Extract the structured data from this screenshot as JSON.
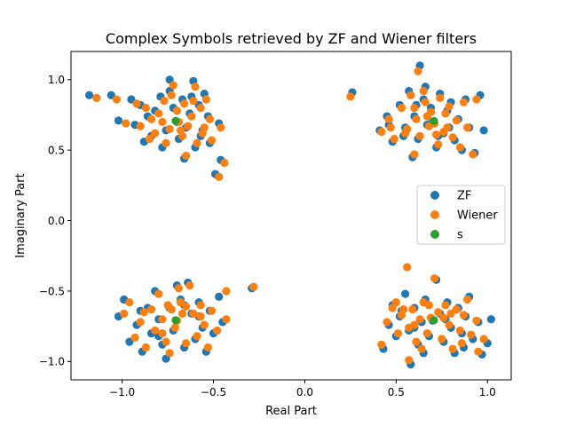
{
  "chart_data": {
    "type": "scatter",
    "title": "Complex Symbols retrieved by ZF and Wiener filters",
    "xlabel": "Real Part",
    "ylabel": "Imaginary Part",
    "xlim": [
      -1.28,
      1.13
    ],
    "ylim": [
      -1.13,
      1.2
    ],
    "xticks": [
      -1.0,
      -0.5,
      0.0,
      0.5,
      1.0
    ],
    "xtick_labels": [
      "−1.0",
      "−0.5",
      "0.0",
      "0.5",
      "1.0"
    ],
    "yticks": [
      -1.0,
      -0.5,
      0.0,
      0.5,
      1.0
    ],
    "ytick_labels": [
      "−1.0",
      "−0.5",
      "0.0",
      "0.5",
      "1.0"
    ],
    "grid": false,
    "legend_position": "center-right",
    "series": [
      {
        "name": "ZF",
        "color": "#1f77b4",
        "points": [
          [
            -1.18,
            0.89
          ],
          [
            -1.06,
            0.89
          ],
          [
            -1.02,
            0.71
          ],
          [
            -0.95,
            0.86
          ],
          [
            -0.93,
            0.68
          ],
          [
            -0.9,
            0.82
          ],
          [
            -0.86,
            0.74
          ],
          [
            -0.84,
            0.6
          ],
          [
            -0.82,
            0.78
          ],
          [
            -0.79,
            0.88
          ],
          [
            -0.76,
            0.64
          ],
          [
            -0.74,
            1.0
          ],
          [
            -0.72,
            0.8
          ],
          [
            -0.7,
            0.7
          ],
          [
            -0.69,
            0.58
          ],
          [
            -0.67,
            0.86
          ],
          [
            -0.65,
            0.66
          ],
          [
            -0.63,
            0.76
          ],
          [
            -0.61,
            0.99
          ],
          [
            -0.6,
            0.52
          ],
          [
            -0.58,
            0.82
          ],
          [
            -0.56,
            0.64
          ],
          [
            -0.55,
            0.9
          ],
          [
            -0.53,
            0.74
          ],
          [
            -0.52,
            0.55
          ],
          [
            -0.49,
            0.33
          ],
          [
            -0.47,
            0.69
          ],
          [
            -0.46,
            0.43
          ],
          [
            -0.78,
            0.52
          ],
          [
            -0.66,
            0.44
          ],
          [
            -0.88,
            0.56
          ],
          [
            -0.62,
            0.88
          ],
          [
            -0.74,
            0.92
          ],
          [
            -0.57,
            0.6
          ],
          [
            0.26,
            0.91
          ],
          [
            0.41,
            0.64
          ],
          [
            0.45,
            0.74
          ],
          [
            0.48,
            0.56
          ],
          [
            0.52,
            0.82
          ],
          [
            0.55,
            0.66
          ],
          [
            0.57,
            0.92
          ],
          [
            0.59,
            0.45
          ],
          [
            0.6,
            0.74
          ],
          [
            0.62,
            0.58
          ],
          [
            0.63,
            1.1
          ],
          [
            0.65,
            0.86
          ],
          [
            0.67,
            0.68
          ],
          [
            0.69,
            0.8
          ],
          [
            0.7,
            0.7
          ],
          [
            0.72,
            0.52
          ],
          [
            0.74,
            0.9
          ],
          [
            0.76,
            0.62
          ],
          [
            0.78,
            0.78
          ],
          [
            0.8,
            0.84
          ],
          [
            0.82,
            0.57
          ],
          [
            0.84,
            0.72
          ],
          [
            0.86,
            0.5
          ],
          [
            0.88,
            0.86
          ],
          [
            0.9,
            0.66
          ],
          [
            0.93,
            0.48
          ],
          [
            0.96,
            0.89
          ],
          [
            0.98,
            0.64
          ],
          [
            0.54,
            0.6
          ],
          [
            0.66,
            0.95
          ],
          [
            0.79,
            0.66
          ],
          [
            0.46,
            0.68
          ],
          [
            0.73,
            0.6
          ],
          [
            0.61,
            0.82
          ],
          [
            -1.02,
            -0.68
          ],
          [
            -0.99,
            -0.56
          ],
          [
            -0.96,
            -0.86
          ],
          [
            -0.92,
            -0.74
          ],
          [
            -0.89,
            -0.93
          ],
          [
            -0.86,
            -0.62
          ],
          [
            -0.84,
            -0.8
          ],
          [
            -0.82,
            -0.5
          ],
          [
            -0.8,
            -0.7
          ],
          [
            -0.78,
            -0.88
          ],
          [
            -0.76,
            -0.98
          ],
          [
            -0.74,
            -0.62
          ],
          [
            -0.72,
            -0.78
          ],
          [
            -0.7,
            -0.71
          ],
          [
            -0.68,
            -0.56
          ],
          [
            -0.66,
            -0.9
          ],
          [
            -0.64,
            -0.44
          ],
          [
            -0.62,
            -0.66
          ],
          [
            -0.6,
            -0.84
          ],
          [
            -0.58,
            -0.58
          ],
          [
            -0.56,
            -0.76
          ],
          [
            -0.54,
            -0.93
          ],
          [
            -0.52,
            -0.64
          ],
          [
            -0.5,
            -0.8
          ],
          [
            -0.47,
            -0.54
          ],
          [
            -0.45,
            -0.72
          ],
          [
            -0.29,
            -0.48
          ],
          [
            -0.9,
            -0.64
          ],
          [
            -0.7,
            -0.46
          ],
          [
            -0.58,
            -0.68
          ],
          [
            -0.8,
            -0.82
          ],
          [
            -0.66,
            -0.6
          ],
          [
            0.43,
            -0.91
          ],
          [
            0.46,
            -0.74
          ],
          [
            0.48,
            -0.6
          ],
          [
            0.5,
            -0.82
          ],
          [
            0.52,
            -0.68
          ],
          [
            0.55,
            -0.52
          ],
          [
            0.57,
            -0.78
          ],
          [
            0.58,
            -1.02
          ],
          [
            0.6,
            -0.62
          ],
          [
            0.62,
            -0.88
          ],
          [
            0.64,
            -0.72
          ],
          [
            0.66,
            -0.56
          ],
          [
            0.68,
            -0.82
          ],
          [
            0.7,
            -0.71
          ],
          [
            0.72,
            -0.42
          ],
          [
            0.74,
            -0.66
          ],
          [
            0.76,
            -0.86
          ],
          [
            0.78,
            -0.58
          ],
          [
            0.8,
            -0.76
          ],
          [
            0.82,
            -0.94
          ],
          [
            0.84,
            -0.62
          ],
          [
            0.86,
            -0.8
          ],
          [
            0.88,
            -0.68
          ],
          [
            0.9,
            -0.54
          ],
          [
            0.92,
            -0.84
          ],
          [
            0.95,
            -0.72
          ],
          [
            0.97,
            -0.95
          ],
          [
            1.0,
            -0.87
          ],
          [
            1.02,
            -0.7
          ],
          [
            0.53,
            -0.64
          ],
          [
            0.65,
            -0.94
          ],
          [
            0.77,
            -0.7
          ],
          [
            0.87,
            -0.9
          ],
          [
            0.6,
            -0.76
          ]
        ]
      },
      {
        "name": "Wiener",
        "color": "#ff7f0e",
        "points": [
          [
            -1.14,
            0.87
          ],
          [
            -1.03,
            0.86
          ],
          [
            -0.98,
            0.69
          ],
          [
            -0.92,
            0.83
          ],
          [
            -0.9,
            0.67
          ],
          [
            -0.87,
            0.8
          ],
          [
            -0.84,
            0.72
          ],
          [
            -0.82,
            0.62
          ],
          [
            -0.8,
            0.76
          ],
          [
            -0.77,
            0.85
          ],
          [
            -0.74,
            0.65
          ],
          [
            -0.72,
            0.96
          ],
          [
            -0.7,
            0.78
          ],
          [
            -0.69,
            0.7
          ],
          [
            -0.67,
            0.6
          ],
          [
            -0.66,
            0.83
          ],
          [
            -0.64,
            0.67
          ],
          [
            -0.62,
            0.74
          ],
          [
            -0.6,
            0.95
          ],
          [
            -0.59,
            0.55
          ],
          [
            -0.57,
            0.8
          ],
          [
            -0.55,
            0.66
          ],
          [
            -0.54,
            0.86
          ],
          [
            -0.52,
            0.72
          ],
          [
            -0.51,
            0.57
          ],
          [
            -0.47,
            0.31
          ],
          [
            -0.46,
            0.66
          ],
          [
            -0.44,
            0.41
          ],
          [
            -0.76,
            0.55
          ],
          [
            -0.65,
            0.46
          ],
          [
            -0.85,
            0.58
          ],
          [
            -0.61,
            0.85
          ],
          [
            -0.73,
            0.89
          ],
          [
            -0.56,
            0.62
          ],
          [
            -0.68,
            0.64
          ],
          [
            -0.78,
            0.7
          ],
          [
            0.25,
            0.88
          ],
          [
            0.42,
            0.63
          ],
          [
            0.46,
            0.72
          ],
          [
            0.49,
            0.58
          ],
          [
            0.53,
            0.8
          ],
          [
            0.56,
            0.65
          ],
          [
            0.58,
            0.89
          ],
          [
            0.6,
            0.47
          ],
          [
            0.61,
            0.72
          ],
          [
            0.63,
            0.6
          ],
          [
            0.62,
            1.06
          ],
          [
            0.66,
            0.84
          ],
          [
            0.68,
            0.67
          ],
          [
            0.69,
            0.77
          ],
          [
            0.71,
            0.69
          ],
          [
            0.73,
            0.54
          ],
          [
            0.74,
            0.87
          ],
          [
            0.76,
            0.63
          ],
          [
            0.77,
            0.76
          ],
          [
            0.79,
            0.81
          ],
          [
            0.81,
            0.59
          ],
          [
            0.83,
            0.71
          ],
          [
            0.85,
            0.52
          ],
          [
            0.87,
            0.84
          ],
          [
            0.89,
            0.66
          ],
          [
            0.92,
            0.47
          ],
          [
            0.94,
            0.86
          ],
          [
            0.55,
            0.62
          ],
          [
            0.65,
            0.92
          ],
          [
            0.78,
            0.66
          ],
          [
            0.47,
            0.66
          ],
          [
            0.72,
            0.61
          ],
          [
            0.6,
            0.8
          ],
          [
            0.67,
            0.74
          ],
          [
            -0.99,
            -0.66
          ],
          [
            -0.96,
            -0.58
          ],
          [
            -0.93,
            -0.83
          ],
          [
            -0.9,
            -0.72
          ],
          [
            -0.87,
            -0.9
          ],
          [
            -0.84,
            -0.63
          ],
          [
            -0.82,
            -0.78
          ],
          [
            -0.8,
            -0.52
          ],
          [
            -0.78,
            -0.7
          ],
          [
            -0.76,
            -0.86
          ],
          [
            -0.74,
            -0.94
          ],
          [
            -0.73,
            -0.63
          ],
          [
            -0.71,
            -0.76
          ],
          [
            -0.7,
            -0.71
          ],
          [
            -0.68,
            -0.58
          ],
          [
            -0.65,
            -0.87
          ],
          [
            -0.63,
            -0.46
          ],
          [
            -0.61,
            -0.66
          ],
          [
            -0.59,
            -0.82
          ],
          [
            -0.57,
            -0.6
          ],
          [
            -0.55,
            -0.74
          ],
          [
            -0.53,
            -0.9
          ],
          [
            -0.51,
            -0.64
          ],
          [
            -0.48,
            -0.78
          ],
          [
            -0.43,
            -0.5
          ],
          [
            -0.43,
            -0.7
          ],
          [
            -0.28,
            -0.47
          ],
          [
            -0.88,
            -0.65
          ],
          [
            -0.69,
            -0.48
          ],
          [
            -0.57,
            -0.68
          ],
          [
            -0.78,
            -0.8
          ],
          [
            -0.65,
            -0.61
          ],
          [
            -0.67,
            -0.66
          ],
          [
            -0.75,
            -0.6
          ],
          [
            0.42,
            -0.88
          ],
          [
            0.45,
            -0.72
          ],
          [
            0.48,
            -0.62
          ],
          [
            0.51,
            -0.8
          ],
          [
            0.53,
            -0.67
          ],
          [
            0.56,
            -0.33
          ],
          [
            0.57,
            -0.76
          ],
          [
            0.57,
            -0.99
          ],
          [
            0.59,
            -0.63
          ],
          [
            0.61,
            -0.86
          ],
          [
            0.63,
            -0.7
          ],
          [
            0.65,
            -0.58
          ],
          [
            0.67,
            -0.8
          ],
          [
            0.69,
            -0.69
          ],
          [
            0.71,
            -0.41
          ],
          [
            0.73,
            -0.65
          ],
          [
            0.75,
            -0.84
          ],
          [
            0.77,
            -0.6
          ],
          [
            0.79,
            -0.74
          ],
          [
            0.81,
            -0.91
          ],
          [
            0.83,
            -0.63
          ],
          [
            0.85,
            -0.78
          ],
          [
            0.87,
            -0.67
          ],
          [
            0.89,
            -0.56
          ],
          [
            0.91,
            -0.81
          ],
          [
            0.94,
            -0.71
          ],
          [
            0.95,
            -0.93
          ],
          [
            0.98,
            -0.84
          ],
          [
            0.54,
            -0.63
          ],
          [
            0.64,
            -0.91
          ],
          [
            0.76,
            -0.69
          ],
          [
            0.86,
            -0.87
          ],
          [
            0.6,
            -0.74
          ],
          [
            0.68,
            -0.6
          ],
          [
            0.8,
            -0.66
          ],
          [
            0.5,
            -0.58
          ]
        ]
      },
      {
        "name": "s",
        "color": "#2ca02c",
        "points": [
          [
            -0.707,
            0.707
          ],
          [
            0.707,
            0.707
          ],
          [
            -0.707,
            -0.707
          ],
          [
            0.707,
            -0.707
          ]
        ]
      }
    ]
  }
}
